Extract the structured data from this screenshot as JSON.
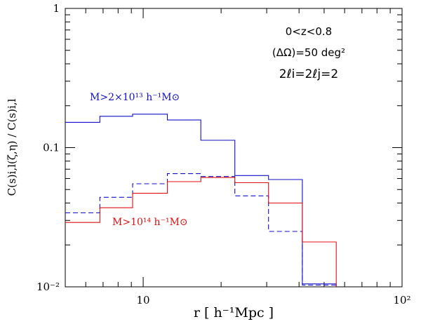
{
  "chart_data": {
    "type": "line",
    "step": true,
    "xscale": "log",
    "yscale": "log",
    "xlim": [
      5,
      100
    ],
    "ylim": [
      0.01,
      1
    ],
    "xticks": [
      {
        "value": 10,
        "label": "10"
      },
      {
        "value": 100,
        "label": "10²"
      }
    ],
    "yticks": [
      {
        "value": 1,
        "label": "1"
      },
      {
        "value": 0.1,
        "label": "0.1"
      },
      {
        "value": 0.01,
        "label": "10⁻²"
      }
    ],
    "xlabel": "r  [ h⁻¹Mpc ]",
    "ylabel": "C(s)i,l(ζ,η) / C(s)i,l",
    "annotations": [
      "0<z<0.8",
      "(ΔΩ)=50 deg²",
      "2ℓi=2ℓj=2"
    ],
    "series": [
      {
        "name": "M>2×10¹³ h⁻¹M⊙",
        "color": "#1010c8",
        "style": "solid",
        "edges": [
          5,
          6.8,
          9.1,
          12.4,
          16.7,
          22.6,
          30.5,
          41.2,
          55.7
        ],
        "values": [
          0.152,
          0.168,
          0.174,
          0.158,
          0.113,
          0.063,
          0.059,
          0.0105
        ]
      },
      {
        "name": "",
        "color": "#1010c8",
        "style": "dashed",
        "edges": [
          5,
          6.8,
          9.1,
          12.4,
          16.7,
          22.6,
          30.5,
          41.2,
          55.7
        ],
        "values": [
          0.034,
          0.044,
          0.055,
          0.065,
          0.062,
          0.045,
          0.025,
          0.0103
        ]
      },
      {
        "name": "M>10¹⁴ h⁻¹M⊙",
        "color": "#e01010",
        "style": "solid",
        "edges": [
          5,
          6.8,
          9.1,
          12.4,
          16.7,
          22.6,
          30.5,
          41.2,
          55.7
        ],
        "values": [
          0.029,
          0.037,
          0.047,
          0.057,
          0.061,
          0.056,
          0.04,
          0.021
        ]
      }
    ]
  }
}
